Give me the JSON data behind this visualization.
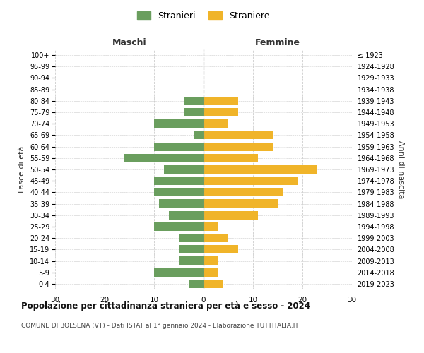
{
  "age_groups": [
    "0-4",
    "5-9",
    "10-14",
    "15-19",
    "20-24",
    "25-29",
    "30-34",
    "35-39",
    "40-44",
    "45-49",
    "50-54",
    "55-59",
    "60-64",
    "65-69",
    "70-74",
    "75-79",
    "80-84",
    "85-89",
    "90-94",
    "95-99",
    "100+"
  ],
  "birth_years": [
    "2019-2023",
    "2014-2018",
    "2009-2013",
    "2004-2008",
    "1999-2003",
    "1994-1998",
    "1989-1993",
    "1984-1988",
    "1979-1983",
    "1974-1978",
    "1969-1973",
    "1964-1968",
    "1959-1963",
    "1954-1958",
    "1949-1953",
    "1944-1948",
    "1939-1943",
    "1934-1938",
    "1929-1933",
    "1924-1928",
    "≤ 1923"
  ],
  "maschi": [
    3,
    10,
    5,
    5,
    5,
    10,
    7,
    9,
    10,
    10,
    8,
    16,
    10,
    2,
    10,
    4,
    4,
    0,
    0,
    0,
    0
  ],
  "femmine": [
    4,
    3,
    3,
    7,
    5,
    3,
    11,
    15,
    16,
    19,
    23,
    11,
    14,
    14,
    5,
    7,
    7,
    0,
    0,
    0,
    0
  ],
  "maschi_color": "#6a9e5e",
  "femmine_color": "#f0b429",
  "background_color": "#ffffff",
  "grid_color": "#cccccc",
  "title": "Popolazione per cittadinanza straniera per età e sesso - 2024",
  "subtitle": "COMUNE DI BOLSENA (VT) - Dati ISTAT al 1° gennaio 2024 - Elaborazione TUTTITALIA.IT",
  "xlabel_left": "Maschi",
  "xlabel_right": "Femmine",
  "ylabel_left": "Fasce di età",
  "ylabel_right": "Anni di nascita",
  "legend_maschi": "Stranieri",
  "legend_femmine": "Straniere",
  "xlim": 30,
  "bar_height": 0.75
}
